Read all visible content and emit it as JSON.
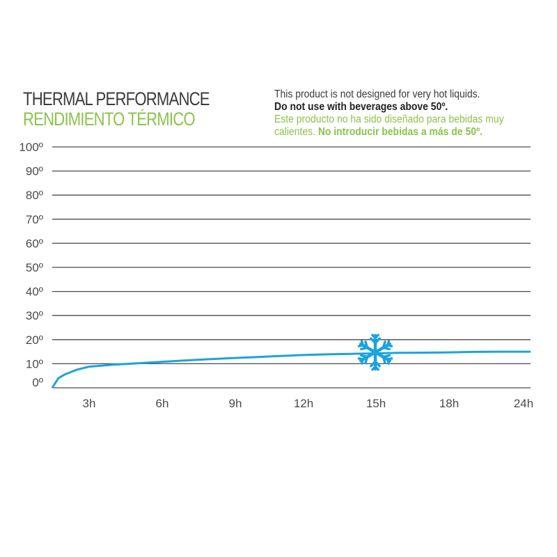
{
  "header": {
    "title_en": "THERMAL PERFORMANCE",
    "title_es": "RENDIMIENTO TÉRMICO"
  },
  "notice": {
    "line1": "This product is not designed for very hot liquids.",
    "line2": "Do not use with beverages above 50º.",
    "line3": "Este producto no ha sido diseñado para bebidas muy",
    "line4_a": "calientes.",
    "line4_b": "No introducir bebidas a más de 50º."
  },
  "colors": {
    "line": "#1ba3dc",
    "grid": "#4a4a4a",
    "accent_green": "#8bc34a",
    "icon": "#1ba3dc"
  },
  "icon": "snowflake-icon",
  "chart_data": {
    "type": "line",
    "xlabel": "",
    "ylabel": "",
    "y_tick_labels": [
      "0º",
      "10º",
      "20º",
      "30º",
      "40º",
      "50º",
      "60º",
      "70º",
      "80º",
      "90º",
      "100º"
    ],
    "x_tick_labels": [
      "3h",
      "6h",
      "9h",
      "12h",
      "15h",
      "18h",
      "24h"
    ],
    "ylim": [
      0,
      100
    ],
    "grid": true,
    "series": [
      {
        "x": [
          0,
          0.5,
          1,
          2,
          3,
          4,
          5,
          6,
          7,
          8,
          9,
          10,
          11,
          12,
          13,
          14,
          15,
          16,
          17,
          18,
          19,
          20,
          21,
          22,
          23,
          24
        ],
        "y": [
          0,
          4,
          5.5,
          7.5,
          8.8,
          9.6,
          10.2,
          10.8,
          11.4,
          11.9,
          12.4,
          12.8,
          13.2,
          13.6,
          13.9,
          14.1,
          14.3,
          14.5,
          14.6,
          14.7,
          14.8,
          14.9,
          14.95,
          15,
          15,
          15
        ]
      }
    ]
  }
}
